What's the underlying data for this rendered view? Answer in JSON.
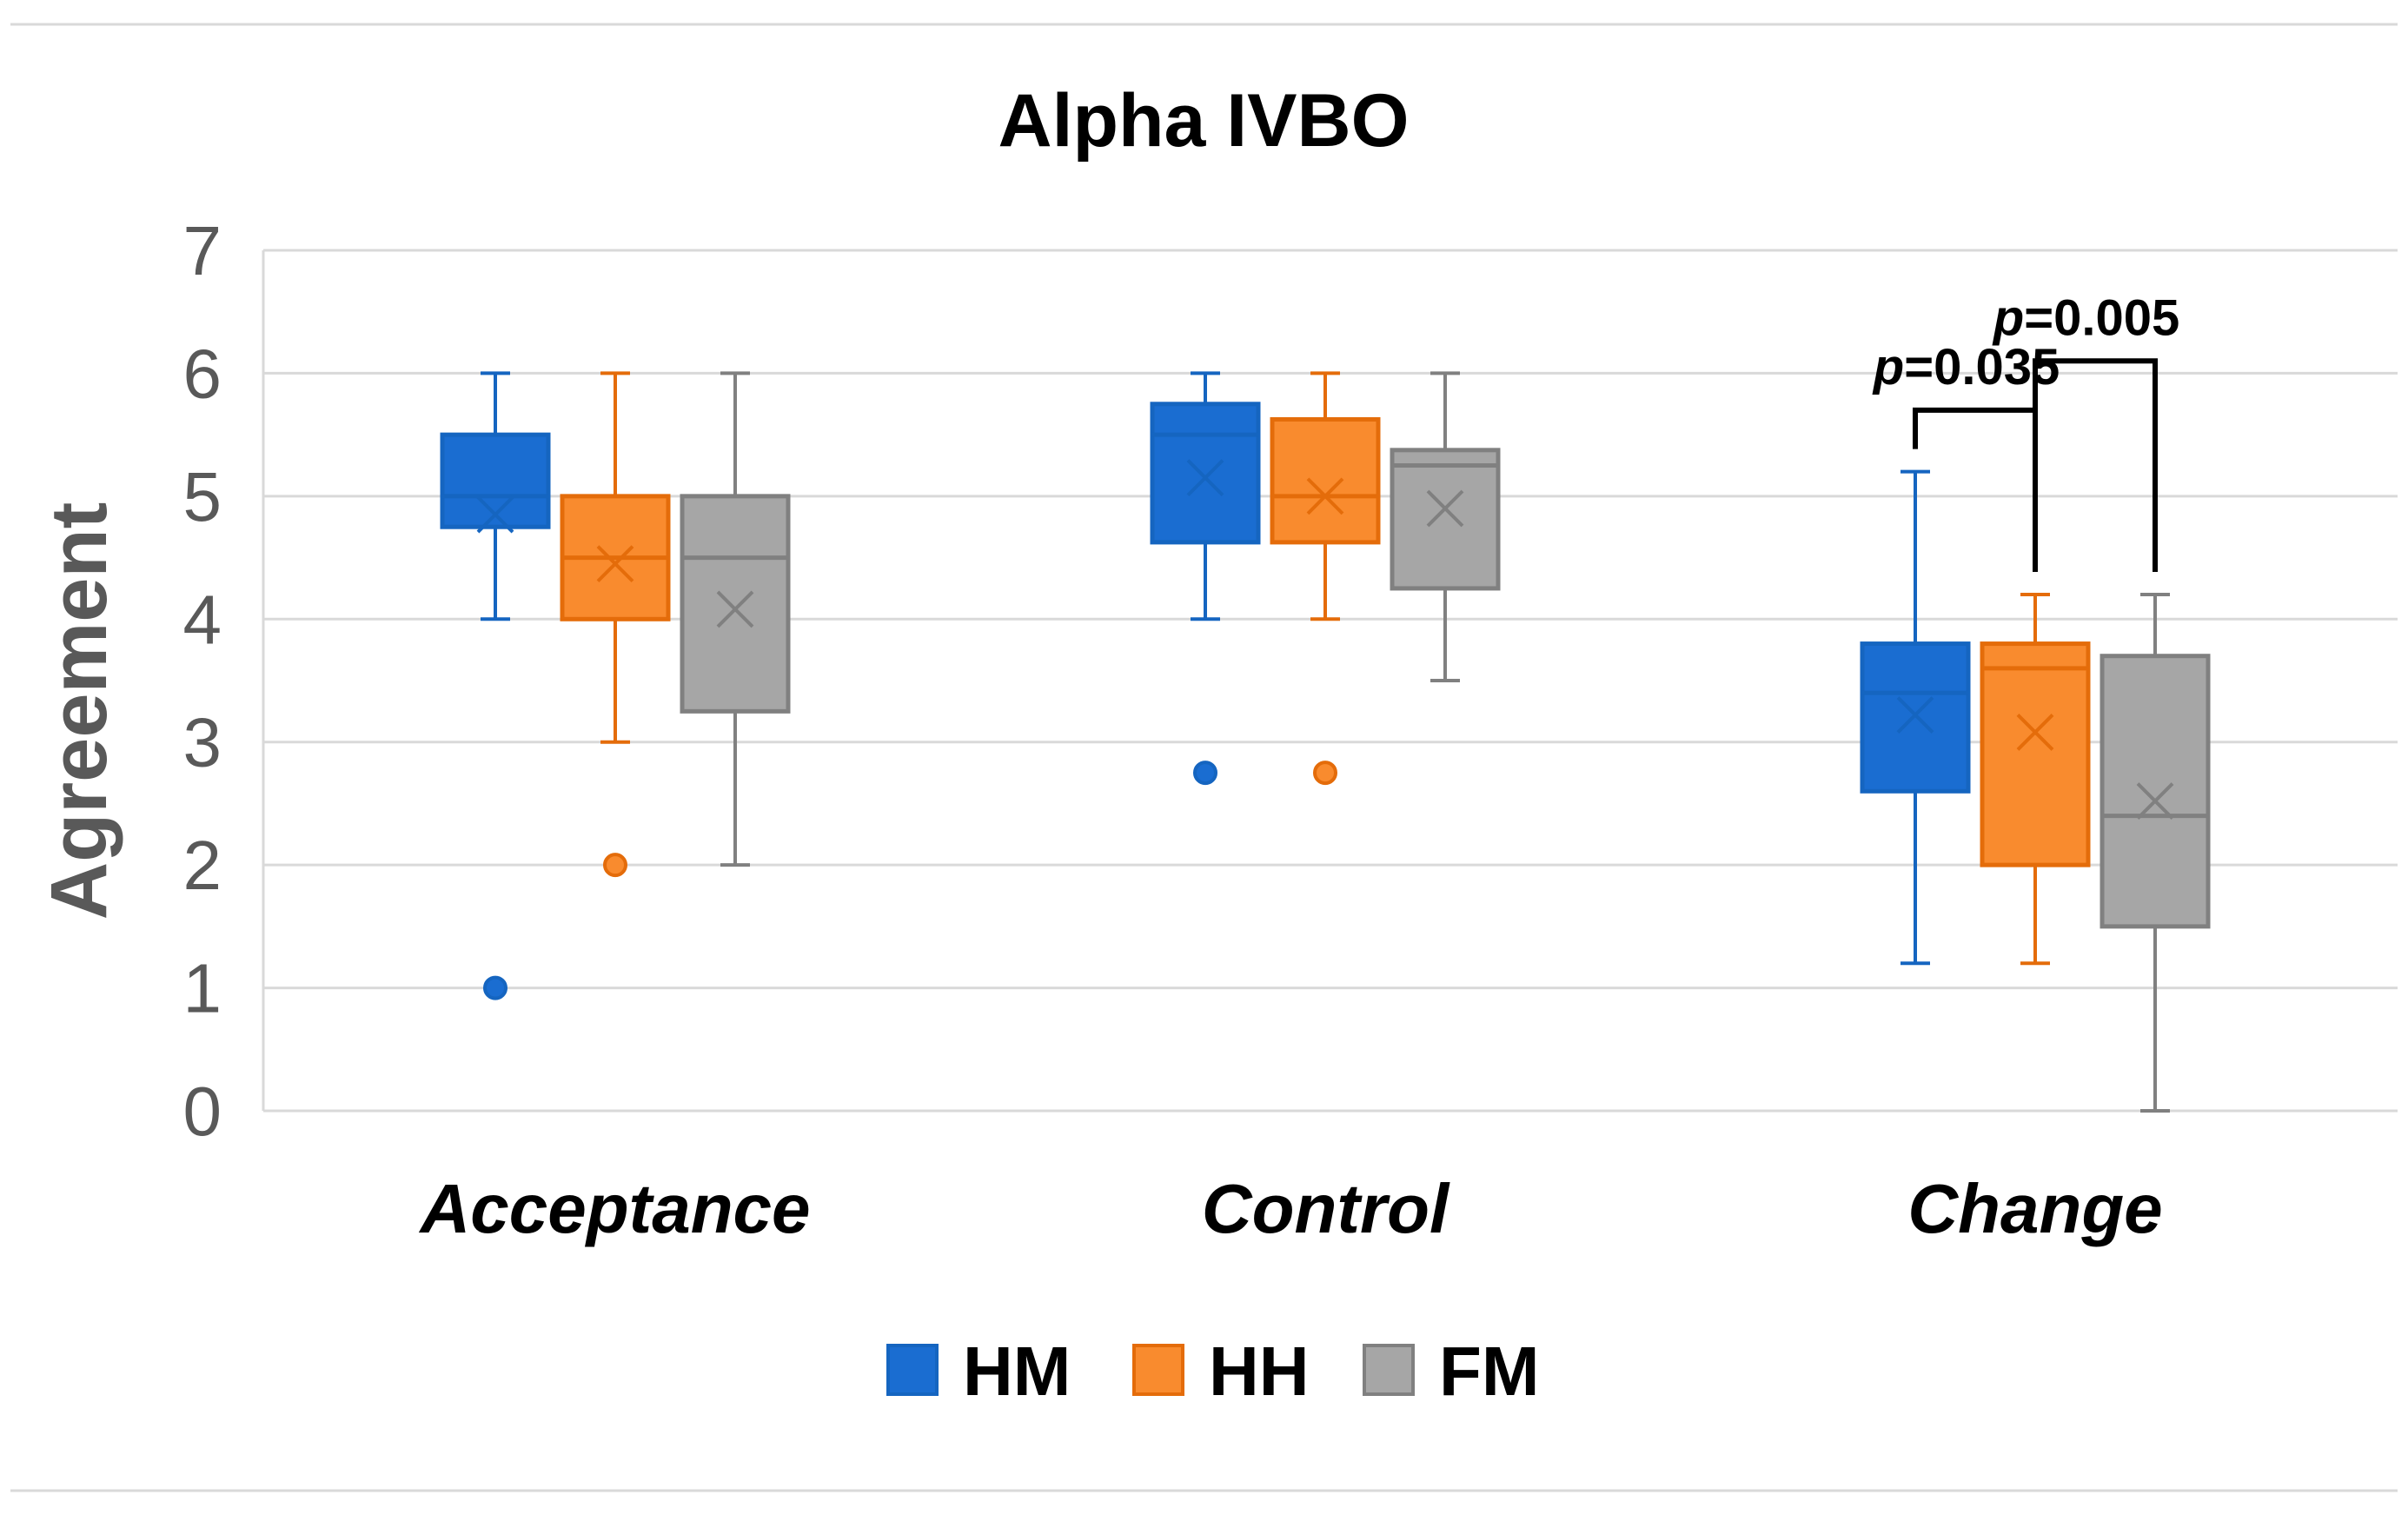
{
  "chart_data": {
    "type": "box",
    "title": "Alpha IVBO",
    "ylabel": "Agreement",
    "xlabel": "",
    "ylim": [
      0,
      7
    ],
    "yticks": [
      0,
      1,
      2,
      3,
      4,
      5,
      6,
      7
    ],
    "grid": true,
    "legend_position": "bottom-center",
    "categories": [
      "Acceptance",
      "Control",
      "Change"
    ],
    "series": [
      {
        "name": "HM",
        "color": "#1565C0",
        "fill": "#1A6DD1",
        "boxes": [
          {
            "min": 4,
            "q1": 4.75,
            "median": 5,
            "q3": 5.5,
            "max": 6,
            "mean": 4.85,
            "outliers": [
              1
            ]
          },
          {
            "min": 4,
            "q1": 4.625,
            "median": 5.5,
            "q3": 5.75,
            "max": 6,
            "mean": 5.15,
            "outliers": [
              2.75
            ]
          },
          {
            "min": 1.2,
            "q1": 2.6,
            "median": 3.4,
            "q3": 3.8,
            "max": 5.2,
            "mean": 3.22,
            "outliers": []
          }
        ]
      },
      {
        "name": "HH",
        "color": "#E46C0A",
        "fill": "#F98B2E",
        "boxes": [
          {
            "min": 3,
            "q1": 4,
            "median": 4.5,
            "q3": 5,
            "max": 6,
            "mean": 4.45,
            "outliers": [
              2
            ]
          },
          {
            "min": 4,
            "q1": 4.625,
            "median": 5,
            "q3": 5.625,
            "max": 6,
            "mean": 5.0,
            "outliers": [
              2.75
            ]
          },
          {
            "min": 1.2,
            "q1": 2,
            "median": 3.6,
            "q3": 3.8,
            "max": 4.2,
            "mean": 3.08,
            "outliers": []
          }
        ]
      },
      {
        "name": "FM",
        "color": "#808080",
        "fill": "#A6A6A6",
        "boxes": [
          {
            "min": 2,
            "q1": 3.25,
            "median": 4.5,
            "q3": 5,
            "max": 6,
            "mean": 4.08,
            "outliers": []
          },
          {
            "min": 3.5,
            "q1": 4.25,
            "median": 5.25,
            "q3": 5.375,
            "max": 6,
            "mean": 4.9,
            "outliers": []
          },
          {
            "min": 0,
            "q1": 1.5,
            "median": 2.4,
            "q3": 3.7,
            "max": 4.2,
            "mean": 2.52,
            "outliers": []
          }
        ]
      }
    ],
    "annotations": [
      {
        "prefix": "p",
        "text": "=0.035",
        "category": "Change",
        "from_series": "HM",
        "to_series": "HH",
        "bracket_y": 5.7
      },
      {
        "prefix": "p",
        "text": "=0.005",
        "category": "Change",
        "from_series": "HH",
        "to_series": "FM",
        "bracket_y": 6.1
      }
    ]
  }
}
